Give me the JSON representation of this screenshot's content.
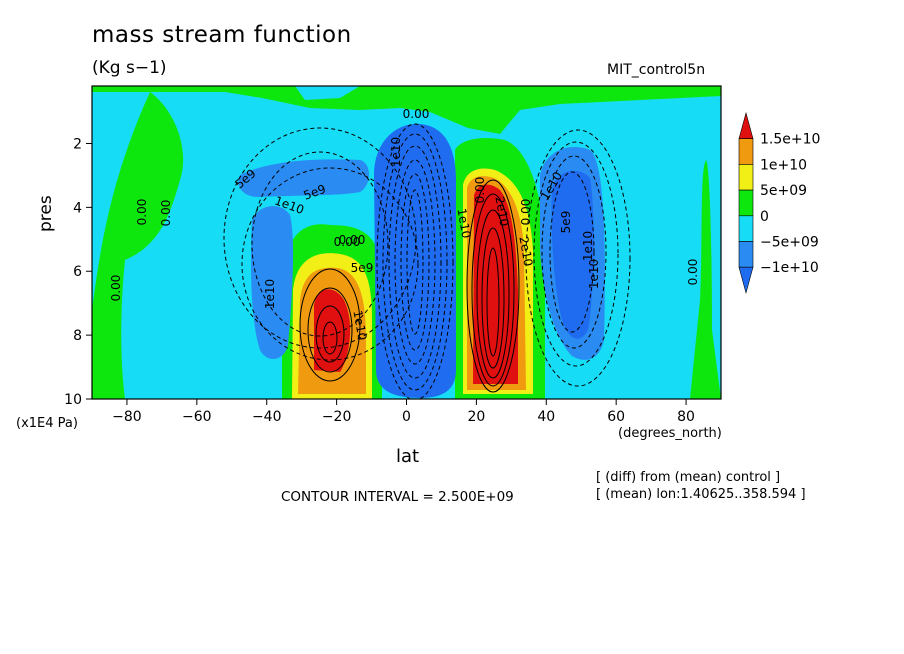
{
  "header": {
    "title": "mass stream function",
    "units": "(Kg s−1)",
    "run_name": "MIT_control5n"
  },
  "axes": {
    "y_label": "pres",
    "y_units": "(x1E4 Pa)",
    "x_label": "lat",
    "x_units": "(degrees_north)"
  },
  "footer": {
    "contour_interval": "CONTOUR INTERVAL = 2.500E+09",
    "note_diff": "[ (diff) from (mean) control ]",
    "note_mean": "[ (mean) lon:1.40625..358.594 ]"
  },
  "chart_data": {
    "type": "contour-filled",
    "title": "mass stream function",
    "xlabel": "lat",
    "ylabel": "pres",
    "xlim": [
      -90,
      90
    ],
    "ylim": [
      0.2,
      10
    ],
    "y_inverted": true,
    "x_ticks": [
      -80,
      -60,
      -40,
      -20,
      0,
      20,
      40,
      60,
      80
    ],
    "x_tick_labels": [
      "−80",
      "−60",
      "−40",
      "−20",
      "0",
      "20",
      "40",
      "60",
      "80"
    ],
    "y_ticks": [
      2,
      4,
      6,
      8,
      10
    ],
    "y_tick_labels": [
      "2",
      "4",
      "6",
      "8",
      "10"
    ],
    "contour_interval": 2500000000.0,
    "colorbar": {
      "labels": [
        "1.5e+10",
        "1e+10",
        "5e+09",
        "0",
        "−5e+09",
        "−1e+10"
      ],
      "bins": [
        {
          "range": [
            15000000000.0,
            null
          ],
          "color": "#e01010"
        },
        {
          "range": [
            10000000000.0,
            15000000000.0
          ],
          "color": "#f09a10"
        },
        {
          "range": [
            5000000000.0,
            10000000000.0
          ],
          "color": "#f2ef16"
        },
        {
          "range": [
            0,
            5000000000.0
          ],
          "color": "#0ee70e"
        },
        {
          "range": [
            -5000000000.0,
            0
          ],
          "color": "#17dcf5"
        },
        {
          "range": [
            -10000000000.0,
            -5000000000.0
          ],
          "color": "#2a8cf2"
        },
        {
          "range": [
            null,
            -10000000000.0
          ],
          "color": "#1f6cf0"
        }
      ]
    },
    "cells": [
      {
        "name": "southern-hadley-cell",
        "lat_center": -25,
        "pres_center": 7.8,
        "peak": 15000000000.0
      },
      {
        "name": "southern-ferrel-cell",
        "lat_center": -42,
        "pres_center": 5.5,
        "peak": -10000000000.0
      },
      {
        "name": "equatorial-cell",
        "lat_center": 3,
        "pres_center": 6,
        "peak": -15000000000.0
      },
      {
        "name": "northern-hadley-cell",
        "lat_center": 27,
        "pres_center": 6,
        "peak": 20000000000.0
      },
      {
        "name": "northern-ferrel-cell",
        "lat_center": 48,
        "pres_center": 5,
        "peak": -10000000000.0
      }
    ],
    "contour_labels": [
      "0.00",
      "0.00",
      "0.00",
      "0.00",
      "0.00",
      "0.00",
      "0.00",
      "0.00",
      "5e9",
      "1e10",
      "5e9",
      "1e10",
      "0.00",
      "5e9",
      "1e10",
      "1e10",
      "1e10",
      "2e10",
      "1e10",
      "2e10",
      "1e10",
      "1e10",
      "5e9"
    ]
  }
}
